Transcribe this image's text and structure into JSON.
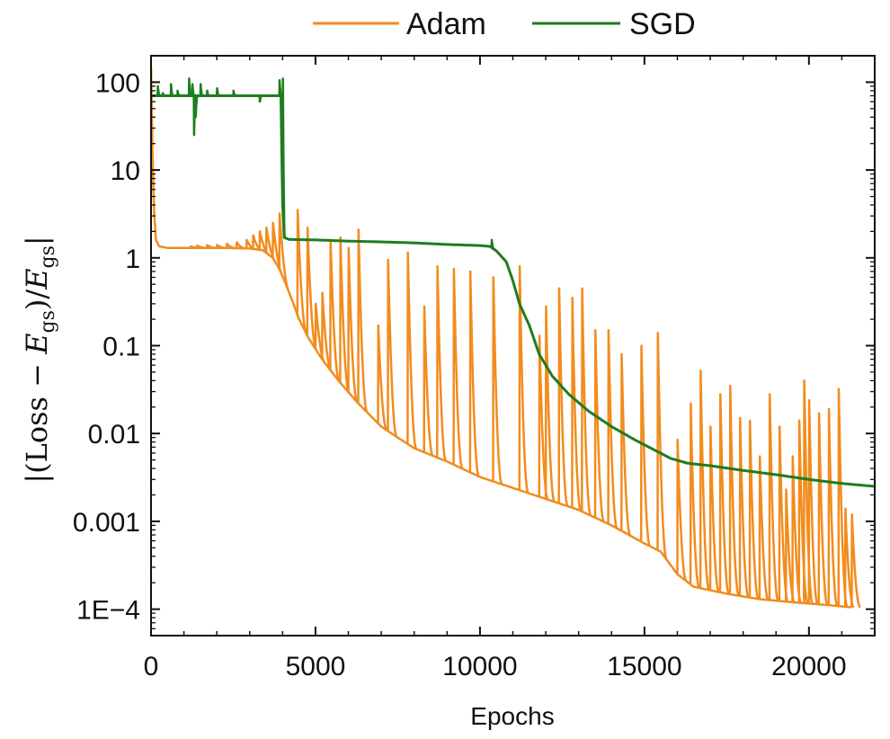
{
  "chart_data": {
    "type": "line",
    "xlabel": "Epochs",
    "ylabel": "|(Loss − E_gs)/E_gs|",
    "ylabel_parts": {
      "open": "|(Loss − ",
      "sym": "E",
      "sub": "gs",
      "mid": ")/",
      "sym2": "E",
      "sub2": "gs",
      "close": "|"
    },
    "yscale": "log",
    "xlim": [
      0,
      22000
    ],
    "ylim": [
      5e-05,
      200
    ],
    "x_ticks": [
      0,
      5000,
      10000,
      15000,
      20000
    ],
    "x_tick_labels": [
      "0",
      "5000",
      "10000",
      "15000",
      "20000"
    ],
    "y_ticks": [
      0.0001,
      0.001,
      0.01,
      0.1,
      1,
      10,
      100
    ],
    "y_tick_labels": [
      "1E−4",
      "0.001",
      "0.01",
      "0.1",
      "1",
      "10",
      "100"
    ],
    "grid": false,
    "legend_position": "top",
    "series": [
      {
        "name": "Adam",
        "color": "#F28C1E",
        "baseline": [
          [
            0,
            150
          ],
          [
            30,
            40
          ],
          [
            60,
            8
          ],
          [
            100,
            3
          ],
          [
            150,
            1.6
          ],
          [
            250,
            1.35
          ],
          [
            500,
            1.3
          ],
          [
            1000,
            1.3
          ],
          [
            2000,
            1.3
          ],
          [
            3000,
            1.28
          ],
          [
            3400,
            1.22
          ],
          [
            3700,
            1.0
          ],
          [
            3900,
            0.75
          ],
          [
            4100,
            0.5
          ],
          [
            4300,
            0.32
          ],
          [
            4500,
            0.2
          ],
          [
            4800,
            0.12
          ],
          [
            5200,
            0.07
          ],
          [
            5700,
            0.04
          ],
          [
            6300,
            0.022
          ],
          [
            7000,
            0.012
          ],
          [
            7500,
            0.009
          ],
          [
            8000,
            0.0068
          ],
          [
            9000,
            0.0048
          ],
          [
            10000,
            0.0032
          ],
          [
            11000,
            0.0024
          ],
          [
            12000,
            0.0018
          ],
          [
            13000,
            0.00135
          ],
          [
            14000,
            0.0009
          ],
          [
            15000,
            0.00056
          ],
          [
            15500,
            0.00045
          ],
          [
            16000,
            0.00025
          ],
          [
            16500,
            0.00018
          ],
          [
            17500,
            0.00015
          ],
          [
            18500,
            0.00013
          ],
          [
            19500,
            0.00012
          ],
          [
            20500,
            0.000112
          ],
          [
            21300,
            0.000105
          ]
        ],
        "spikes": [
          [
            1200,
            1.35
          ],
          [
            1400,
            1.38
          ],
          [
            1700,
            1.4
          ],
          [
            2000,
            1.4
          ],
          [
            2300,
            1.45
          ],
          [
            2600,
            1.5
          ],
          [
            2900,
            1.6
          ],
          [
            3100,
            1.8
          ],
          [
            3300,
            2.0
          ],
          [
            3500,
            2.2
          ],
          [
            3700,
            2.5
          ],
          [
            3900,
            3.2
          ],
          [
            4450,
            3.5
          ],
          [
            4750,
            2.2
          ],
          [
            5000,
            0.3
          ],
          [
            5200,
            0.4
          ],
          [
            5450,
            1.6
          ],
          [
            5750,
            1.7
          ],
          [
            6000,
            1.3
          ],
          [
            6300,
            2.1
          ],
          [
            6900,
            0.17
          ],
          [
            7200,
            0.95
          ],
          [
            7800,
            1.15
          ],
          [
            8300,
            0.28
          ],
          [
            8700,
            0.8
          ],
          [
            9200,
            0.75
          ],
          [
            9700,
            0.7
          ],
          [
            10400,
            0.6
          ],
          [
            11200,
            0.8
          ],
          [
            11800,
            0.13
          ],
          [
            12000,
            0.28
          ],
          [
            12400,
            0.45
          ],
          [
            12800,
            0.35
          ],
          [
            13100,
            0.45
          ],
          [
            13500,
            0.15
          ],
          [
            13900,
            0.15
          ],
          [
            14300,
            0.08
          ],
          [
            14900,
            0.1
          ],
          [
            15400,
            0.14
          ],
          [
            16000,
            0.0085
          ],
          [
            16400,
            0.022
          ],
          [
            16700,
            0.052
          ],
          [
            17000,
            0.012
          ],
          [
            17300,
            0.028
          ],
          [
            17600,
            0.035
          ],
          [
            17900,
            0.015
          ],
          [
            18200,
            0.014
          ],
          [
            18500,
            0.0055
          ],
          [
            18800,
            0.028
          ],
          [
            19100,
            0.012
          ],
          [
            19300,
            0.0023
          ],
          [
            19500,
            0.0055
          ],
          [
            19700,
            0.014
          ],
          [
            19850,
            0.04
          ],
          [
            20000,
            0.024
          ],
          [
            20300,
            0.017
          ],
          [
            20600,
            0.019
          ],
          [
            20900,
            0.032
          ],
          [
            21100,
            0.0014
          ],
          [
            21300,
            0.0012
          ]
        ]
      },
      {
        "name": "SGD",
        "color": "#1E7D1E",
        "baseline": [
          [
            0,
            70
          ],
          [
            500,
            70
          ],
          [
            1000,
            70
          ],
          [
            2000,
            70
          ],
          [
            3000,
            70
          ],
          [
            3950,
            70
          ],
          [
            4000,
            4
          ],
          [
            4050,
            1.7
          ],
          [
            4200,
            1.62
          ],
          [
            5000,
            1.6
          ],
          [
            6000,
            1.55
          ],
          [
            7000,
            1.52
          ],
          [
            8000,
            1.48
          ],
          [
            9000,
            1.42
          ],
          [
            10000,
            1.38
          ],
          [
            10300,
            1.35
          ],
          [
            10500,
            1.2
          ],
          [
            10800,
            0.9
          ],
          [
            11000,
            0.55
          ],
          [
            11200,
            0.3
          ],
          [
            11500,
            0.17
          ],
          [
            11800,
            0.08
          ],
          [
            12200,
            0.045
          ],
          [
            12700,
            0.028
          ],
          [
            13300,
            0.018
          ],
          [
            14000,
            0.012
          ],
          [
            14700,
            0.0085
          ],
          [
            15300,
            0.0065
          ],
          [
            15800,
            0.0052
          ],
          [
            16300,
            0.0046
          ],
          [
            17000,
            0.0043
          ],
          [
            18000,
            0.0038
          ],
          [
            19000,
            0.0034
          ],
          [
            20000,
            0.003
          ],
          [
            21000,
            0.0027
          ],
          [
            22000,
            0.0025
          ]
        ],
        "spikes": [
          [
            200,
            90
          ],
          [
            350,
            75
          ],
          [
            600,
            95
          ],
          [
            800,
            80
          ],
          [
            1150,
            110
          ],
          [
            1250,
            95
          ],
          [
            1300,
            25
          ],
          [
            1350,
            40
          ],
          [
            1500,
            95
          ],
          [
            1700,
            80
          ],
          [
            2000,
            85
          ],
          [
            2500,
            80
          ],
          [
            3300,
            60
          ],
          [
            3900,
            105
          ],
          [
            4000,
            110
          ],
          [
            10350,
            1.6
          ]
        ]
      }
    ]
  }
}
